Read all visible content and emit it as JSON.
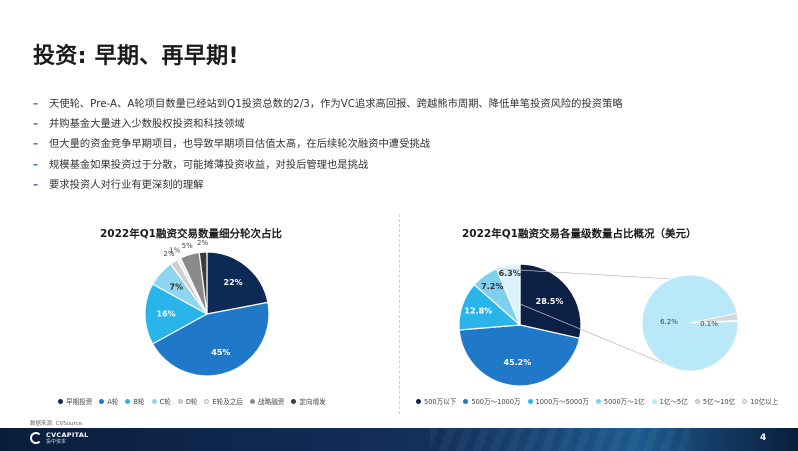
{
  "title": "投资: 早期、再早期!",
  "bullets": [
    "天使轮、Pre-A、A轮项目数量已经站到Q1投资总数的2/3，作为VC追求高回报、跨越熊市周期、降低单笔投资风险的投资策略",
    "并购基金大量进入少数股权投资和科技领域",
    "但大量的资金竞争早期项目，也导致早期项目估值太高，在后续轮次融资中遭受挑战",
    "规模基金如果投资过于分散，可能摊薄投资收益，对投后管理也是挑战",
    "要求投资人对行业有更深刻的理解"
  ],
  "bullet_marker": "–",
  "source": "数据来源: CVSource",
  "logo": {
    "en": "CVCAPITAL",
    "cn": "投中资本"
  },
  "page_number": "4",
  "colors": {
    "accent": "#1f6fb3",
    "footer": "#0a1d3c"
  },
  "chart_data": [
    {
      "type": "pie",
      "title": "2022年Q1融资交易数量细分轮次占比",
      "legend_position": "bottom",
      "categories": [
        "早期投资",
        "A轮",
        "B轮",
        "C轮",
        "D轮",
        "E轮及之后",
        "战略融资",
        "定向增发"
      ],
      "values": [
        22,
        45,
        16,
        7,
        2,
        1,
        5,
        2
      ],
      "labels": [
        "22%",
        "45%",
        "16%",
        "7%",
        "2%",
        "1%",
        "5%",
        "2%"
      ],
      "colors": [
        "#0c2a55",
        "#1f78c8",
        "#29b5ea",
        "#8fd4f0",
        "#d0d0d0",
        "#ececec",
        "#8a8a8a",
        "#3c3c3c"
      ]
    },
    {
      "type": "pie",
      "title": "2022年Q1融资交易各量级数量占比概况（美元）",
      "legend_position": "bottom",
      "categories": [
        "500万以下",
        "500万～1000万",
        "1000万～5000万",
        "5000万～1亿",
        "1亿～5亿",
        "5亿～10亿",
        "10亿以上"
      ],
      "values": [
        28.5,
        45.2,
        12.8,
        7.2,
        6.2,
        0.1,
        0
      ],
      "main_labels": [
        "28.5%",
        "45.2%",
        "12.8%",
        "7.2%",
        "6.3%"
      ],
      "sub_pie_labels": [
        "6.2%",
        "0.1%"
      ],
      "colors": [
        "#0c1f45",
        "#1f78c8",
        "#29b5ea",
        "#7fd0ef",
        "#b9e8f8",
        "#d8d8d8",
        "#efefef"
      ]
    }
  ]
}
